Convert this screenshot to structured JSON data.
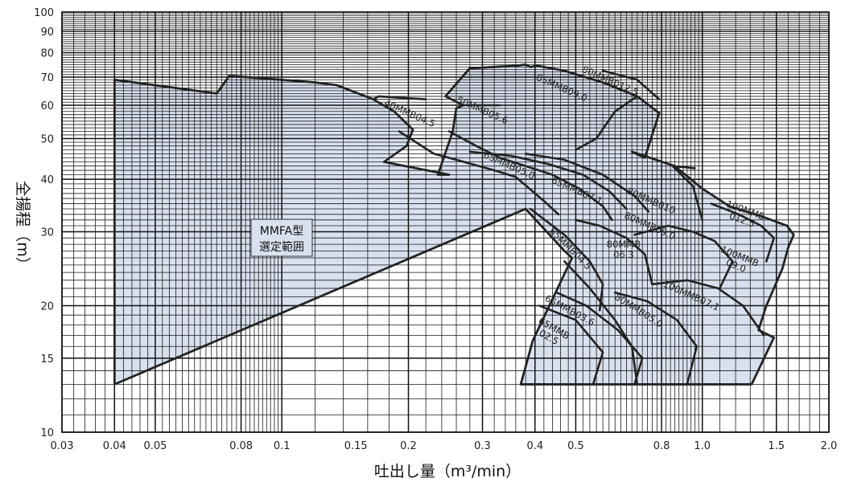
{
  "chart_data": {
    "type": "area",
    "title": "",
    "xlabel": "吐出し量（m³/min）",
    "ylabel": "全揚程（m）",
    "xscale": "log",
    "yscale": "log",
    "xlim": [
      0.03,
      2.0
    ],
    "ylim": [
      10,
      100
    ],
    "grid": true,
    "x_ticks": [
      "0.03",
      "0.04",
      "0.05",
      "0.08",
      "0.1",
      "0.15",
      "0.2",
      "0.3",
      "0.4",
      "0.5",
      "0.8",
      "1.0",
      "1.5",
      "2.0"
    ],
    "y_ticks": [
      "10",
      "15",
      "20",
      "30",
      "40",
      "50",
      "60",
      "70",
      "80",
      "90",
      "100"
    ],
    "note": [
      "MMFA型",
      "選定範囲"
    ],
    "envelope": [
      [
        0.04,
        69
      ],
      [
        0.07,
        64
      ],
      [
        0.075,
        70.5
      ],
      [
        0.12,
        68
      ],
      [
        0.135,
        67
      ],
      [
        0.165,
        62
      ],
      [
        0.185,
        58
      ],
      [
        0.205,
        52.5
      ],
      [
        0.198,
        48
      ],
      [
        0.175,
        44
      ],
      [
        0.25,
        41
      ],
      [
        0.235,
        41
      ],
      [
        0.255,
        52
      ],
      [
        0.26,
        59
      ],
      [
        0.27,
        60
      ],
      [
        0.245,
        63
      ],
      [
        0.28,
        73.5
      ],
      [
        0.36,
        74.5
      ],
      [
        0.38,
        75
      ],
      [
        0.39,
        74
      ],
      [
        0.405,
        74.5
      ],
      [
        0.47,
        72.5
      ],
      [
        0.58,
        68
      ],
      [
        0.7,
        63
      ],
      [
        0.79,
        57.5
      ],
      [
        0.73,
        45
      ],
      [
        0.68,
        46.5
      ],
      [
        0.86,
        43
      ],
      [
        1.0,
        38
      ],
      [
        1.16,
        34.5
      ],
      [
        1.4,
        32.5
      ],
      [
        1.59,
        31
      ],
      [
        1.65,
        29.5
      ],
      [
        1.6,
        27.5
      ],
      [
        1.55,
        24.5
      ],
      [
        1.42,
        20
      ],
      [
        1.36,
        17.5
      ],
      [
        1.48,
        16.8
      ],
      [
        1.31,
        13
      ],
      [
        0.37,
        13
      ],
      [
        0.395,
        16.5
      ],
      [
        0.49,
        26
      ],
      [
        0.47,
        27
      ],
      [
        0.38,
        34
      ],
      [
        0.04,
        13
      ]
    ],
    "series": [
      {
        "name": "40MMB04.5"
      },
      {
        "name": "50MMB05.6"
      },
      {
        "name": "65MMB09.0"
      },
      {
        "name": "80MMB012.5"
      },
      {
        "name": "65MMB05.0"
      },
      {
        "name": "65MMB07.1"
      },
      {
        "name": "80MMB010"
      },
      {
        "name": "100MMB\n012.5"
      },
      {
        "name": "80MMB09.0"
      },
      {
        "name": "80MMB\n06.3"
      },
      {
        "name": "100MMB\n09.0"
      },
      {
        "name": "65MMB04.5"
      },
      {
        "name": "100MMB07.1"
      },
      {
        "name": "65MMB03.6"
      },
      {
        "name": "80MMB05.0"
      },
      {
        "name": "65MMB\n02.5"
      }
    ],
    "divisions": [
      [
        [
          0.19,
          52
        ],
        [
          0.23,
          46
        ],
        [
          0.26,
          44.5
        ],
        [
          0.32,
          42
        ],
        [
          0.36,
          40.5
        ],
        [
          0.42,
          35.5
        ],
        [
          0.455,
          33
        ]
      ],
      [
        [
          0.25,
          52
        ],
        [
          0.29,
          48
        ],
        [
          0.33,
          45
        ],
        [
          0.38,
          43
        ],
        [
          0.44,
          41
        ],
        [
          0.51,
          38
        ],
        [
          0.58,
          34.5
        ],
        [
          0.61,
          32
        ]
      ],
      [
        [
          0.28,
          46.5
        ],
        [
          0.35,
          45.5
        ],
        [
          0.43,
          43.5
        ],
        [
          0.52,
          41
        ],
        [
          0.6,
          37.5
        ],
        [
          0.66,
          34
        ]
      ],
      [
        [
          0.38,
          46
        ],
        [
          0.47,
          44.5
        ],
        [
          0.58,
          41
        ],
        [
          0.69,
          36.5
        ],
        [
          0.745,
          33.5
        ]
      ],
      [
        [
          0.39,
          34
        ],
        [
          0.47,
          29.5
        ],
        [
          0.54,
          25.5
        ],
        [
          0.58,
          22.5
        ],
        [
          0.57,
          19.5
        ]
      ],
      [
        [
          0.47,
          25.5
        ],
        [
          0.54,
          22
        ],
        [
          0.62,
          18.5
        ],
        [
          0.68,
          16
        ],
        [
          0.7,
          13
        ]
      ],
      [
        [
          0.41,
          20
        ],
        [
          0.5,
          18.5
        ],
        [
          0.58,
          15.5
        ],
        [
          0.55,
          13
        ]
      ],
      [
        [
          0.45,
          21.5
        ],
        [
          0.53,
          20
        ],
        [
          0.63,
          17.5
        ],
        [
          0.72,
          15
        ],
        [
          0.69,
          13
        ]
      ],
      [
        [
          0.5,
          32
        ],
        [
          0.57,
          31
        ],
        [
          0.66,
          29
        ],
        [
          0.73,
          26.5
        ],
        [
          0.76,
          22.5
        ]
      ],
      [
        [
          0.62,
          21.5
        ],
        [
          0.74,
          20.5
        ],
        [
          0.87,
          18.5
        ],
        [
          0.97,
          16
        ],
        [
          0.92,
          13
        ]
      ],
      [
        [
          0.69,
          29.5
        ],
        [
          0.83,
          31
        ],
        [
          0.95,
          30
        ],
        [
          1.07,
          28.5
        ],
        [
          1.18,
          25.5
        ],
        [
          1.1,
          22
        ]
      ],
      [
        [
          0.76,
          22.5
        ],
        [
          0.92,
          23
        ],
        [
          1.09,
          22
        ],
        [
          1.25,
          20
        ],
        [
          1.4,
          17
        ]
      ],
      [
        [
          0.85,
          43
        ],
        [
          0.95,
          38.5
        ],
        [
          1.0,
          32
        ]
      ],
      [
        [
          1.05,
          35
        ],
        [
          1.22,
          33
        ],
        [
          1.38,
          31
        ],
        [
          1.48,
          29
        ],
        [
          1.42,
          25.5
        ]
      ],
      [
        [
          0.7,
          63
        ],
        [
          0.62,
          58
        ],
        [
          0.56,
          50
        ],
        [
          0.5,
          47
        ]
      ],
      [
        [
          0.58,
          72.5
        ],
        [
          0.7,
          69
        ],
        [
          0.79,
          62
        ]
      ],
      [
        [
          0.165,
          62
        ],
        [
          0.17,
          63
        ],
        [
          0.22,
          62
        ]
      ],
      [
        [
          0.27,
          60
        ],
        [
          0.33,
          60
        ]
      ],
      [
        [
          0.85,
          43
        ],
        [
          0.96,
          42.5
        ]
      ]
    ]
  }
}
